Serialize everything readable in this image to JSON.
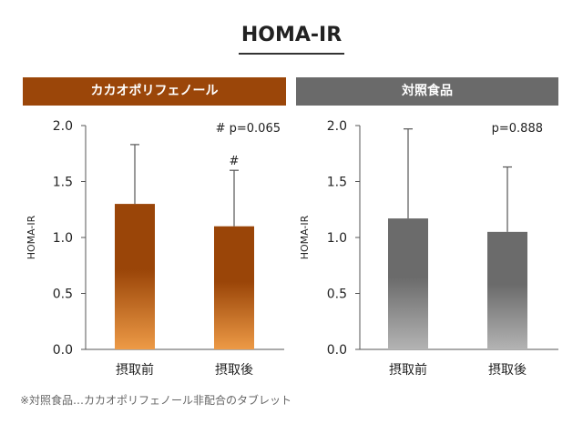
{
  "title": "HOMA-IR",
  "footnote": "※対照食品…カカオポリフェノール非配合のタブレット",
  "chart_data": [
    {
      "type": "bar",
      "title": "カカオポリフェノール",
      "categories": [
        "摂取前",
        "摂取後"
      ],
      "values": [
        1.3,
        1.1
      ],
      "error_upper": [
        1.83,
        1.6
      ],
      "ylabel": "HOMA-IR",
      "ylim": [
        0,
        2.0
      ],
      "yticks": [
        "2.0",
        "1.5",
        "1.0",
        "0.5",
        "0.0"
      ],
      "annotation": "# p=0.065",
      "bar_marks": [
        "",
        "#"
      ],
      "colors": {
        "banner": "#9b4609",
        "bar_top": "#9a4508",
        "bar_bottom": "#ed9a46"
      }
    },
    {
      "type": "bar",
      "title": "対照食品",
      "categories": [
        "摂取前",
        "摂取後"
      ],
      "values": [
        1.17,
        1.05
      ],
      "error_upper": [
        1.97,
        1.63
      ],
      "ylabel": "HOMA-IR",
      "ylim": [
        0,
        2.0
      ],
      "yticks": [
        "2.0",
        "1.5",
        "1.0",
        "0.5",
        "0.0"
      ],
      "annotation": "p=0.888",
      "bar_marks": [
        "",
        ""
      ],
      "colors": {
        "banner": "#6a6a6a",
        "bar_top": "#6b6b6b",
        "bar_bottom": "#b3b3b3"
      }
    }
  ]
}
